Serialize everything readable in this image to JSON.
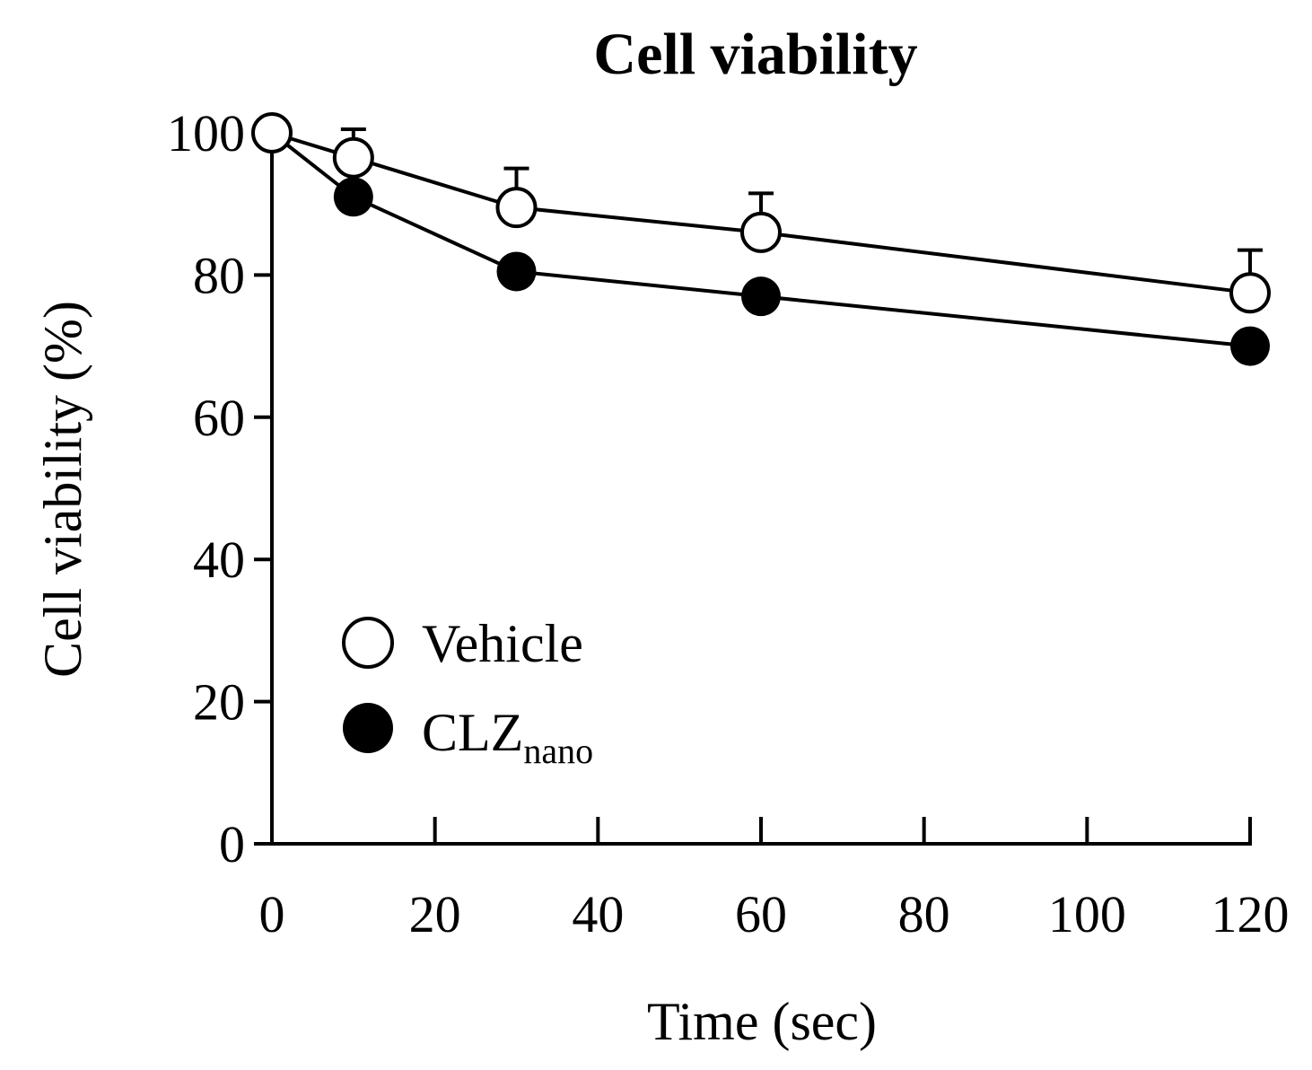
{
  "chart_data": {
    "type": "line",
    "title": "Cell viability",
    "xlabel": "Time (sec)",
    "ylabel": "Cell viability (%)",
    "xlim": [
      0,
      120
    ],
    "ylim": [
      0,
      100
    ],
    "xticks": [
      "0",
      "20",
      "40",
      "60",
      "80",
      "100",
      "120"
    ],
    "yticks": [
      "0",
      "20",
      "40",
      "60",
      "80",
      "100"
    ],
    "x": [
      0,
      10,
      30,
      60,
      120
    ],
    "grid": false,
    "legend_position": "bottom-left",
    "series": [
      {
        "name": "Vehicle",
        "marker": "open-circle",
        "values": [
          100,
          96.5,
          89.5,
          86,
          77.5
        ],
        "error_upper": [
          0,
          4,
          5.5,
          5.5,
          6
        ]
      },
      {
        "name": "CLZ",
        "name_subscript": "nano",
        "marker": "filled-circle",
        "values": [
          100,
          91,
          80.5,
          77,
          70
        ],
        "error_upper": [
          0,
          0,
          0,
          0,
          0
        ]
      }
    ]
  }
}
